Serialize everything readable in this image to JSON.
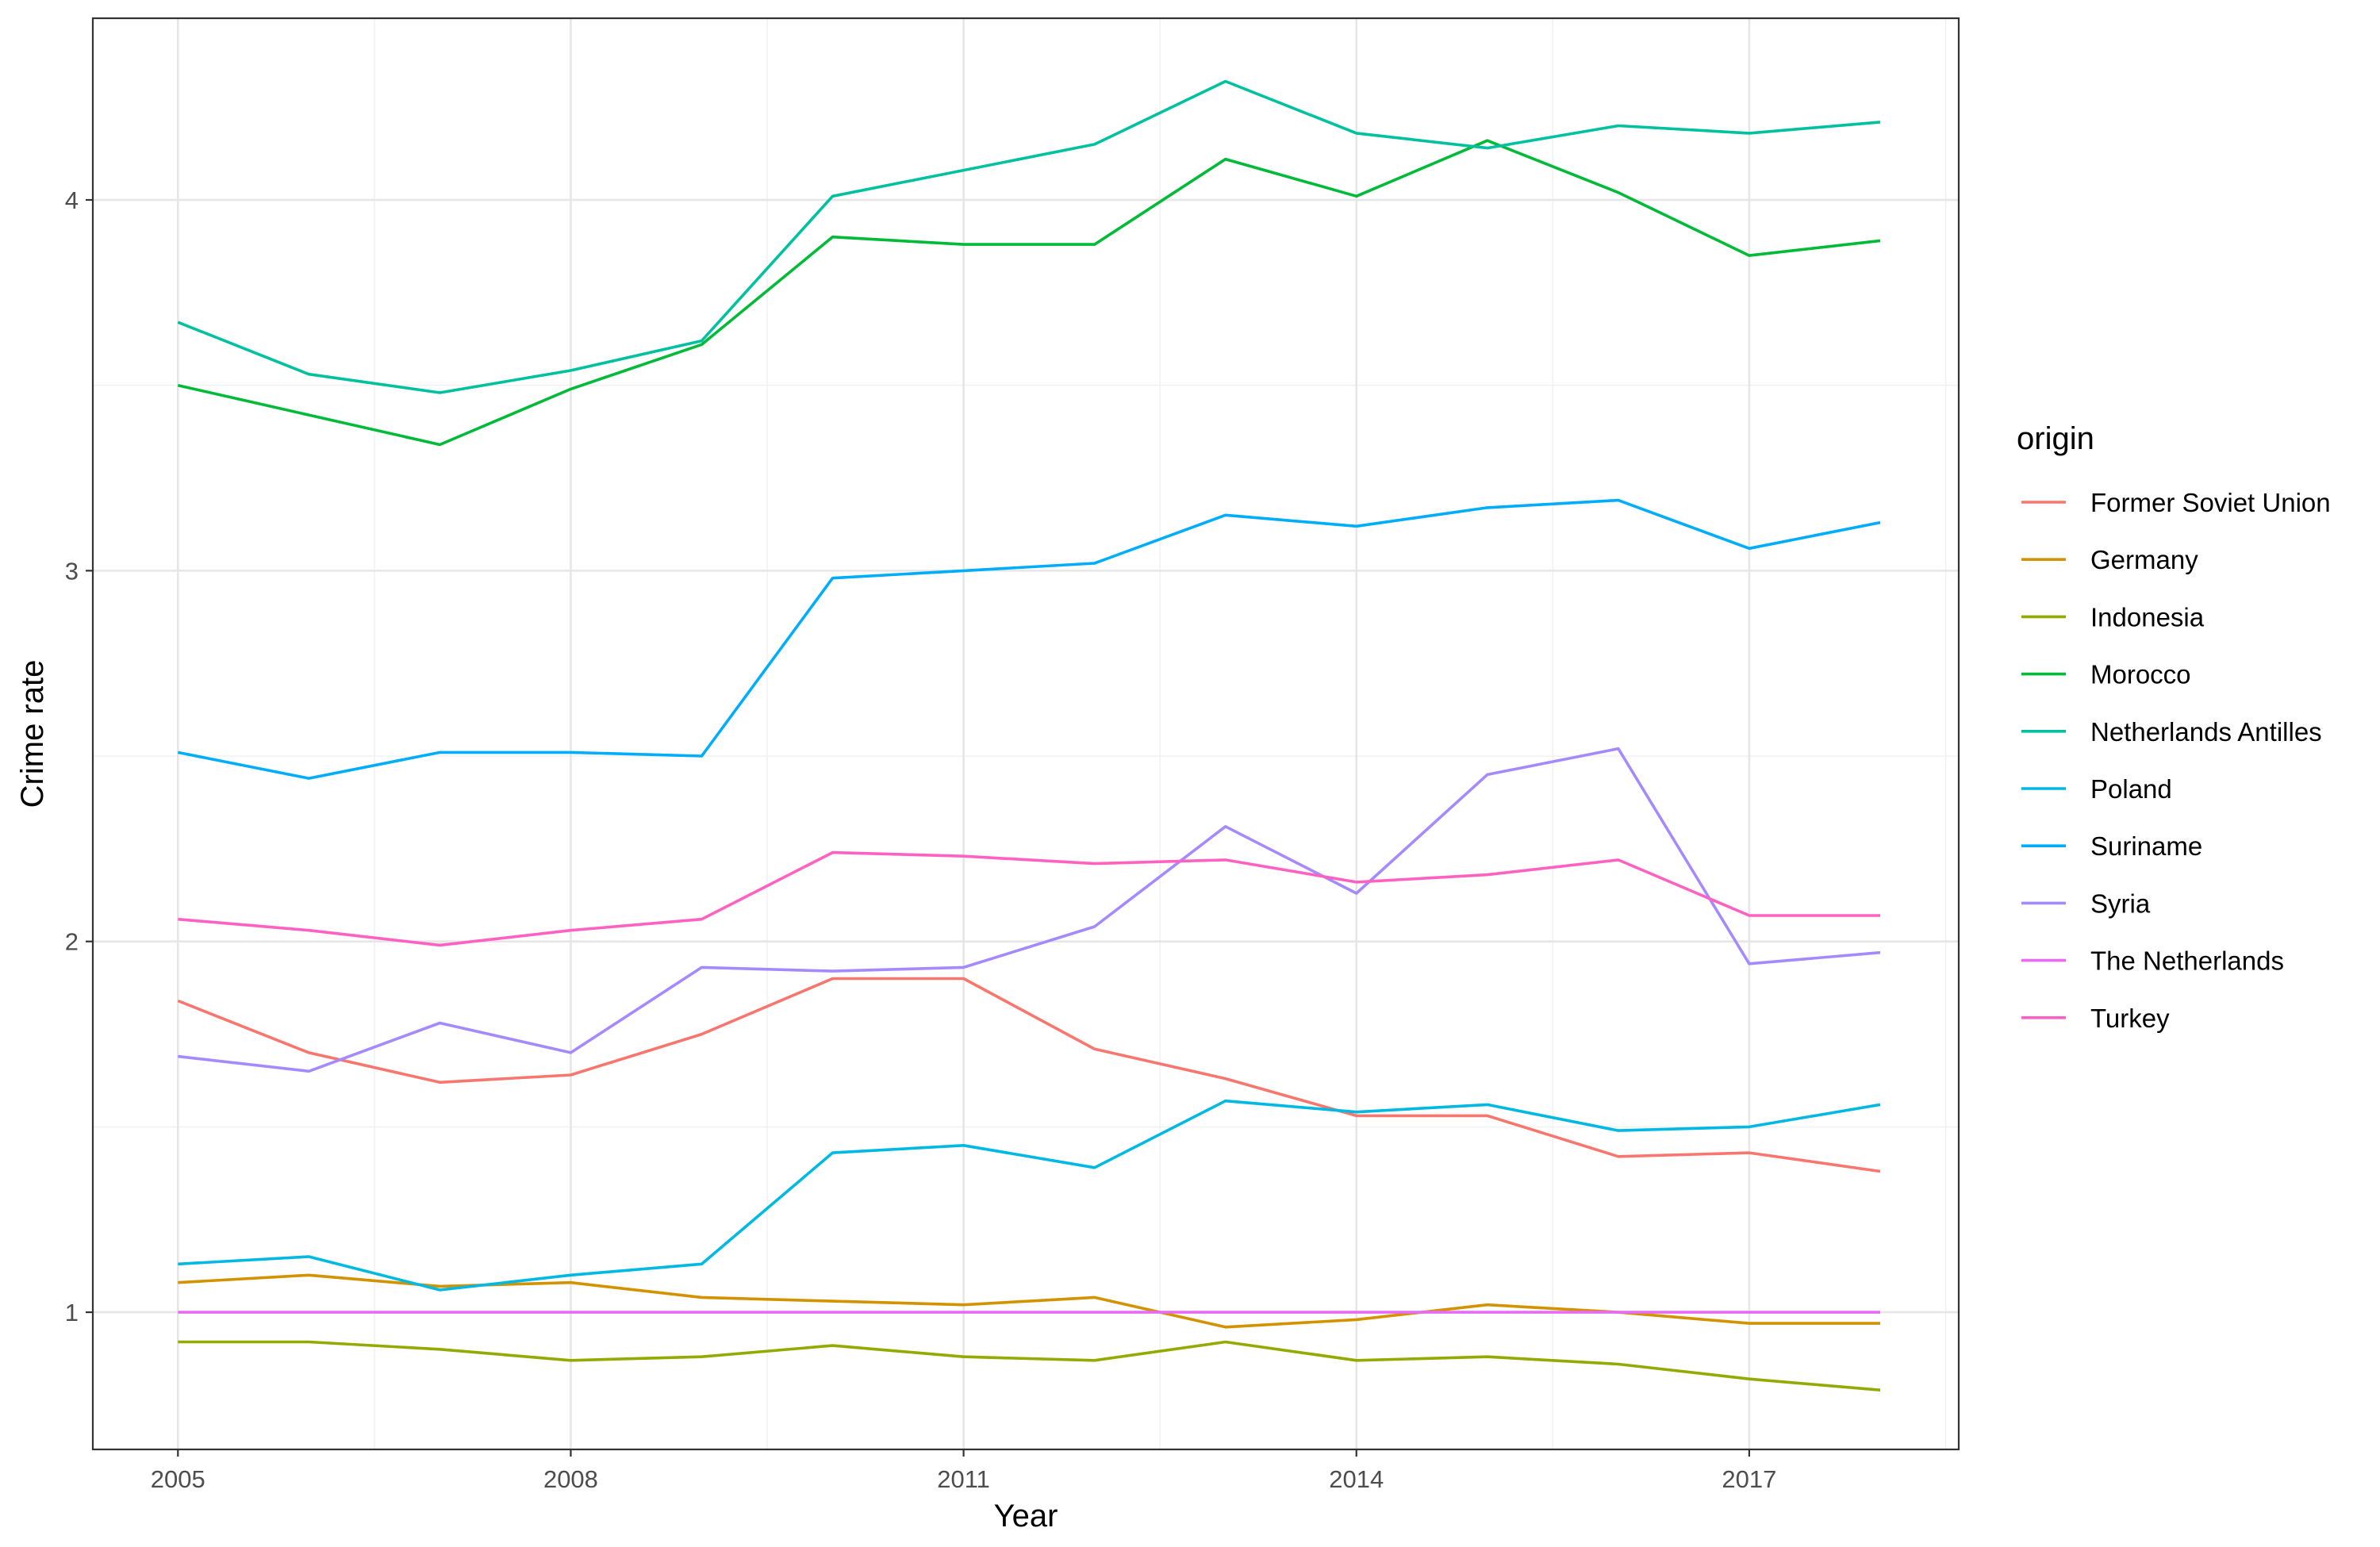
{
  "chart_data": {
    "type": "line",
    "title": "",
    "xlabel": "Year",
    "ylabel": "Crime rate",
    "legend_title": "origin",
    "legend_position": "right",
    "grid": true,
    "xlim": [
      2004.35,
      2018.6
    ],
    "ylim": [
      0.63,
      4.49
    ],
    "x_ticks": [
      2005,
      2008,
      2011,
      2014,
      2017
    ],
    "y_ticks": [
      1,
      2,
      3,
      4
    ],
    "x": [
      2005,
      2006,
      2007,
      2008,
      2009,
      2010,
      2011,
      2012,
      2013,
      2014,
      2015,
      2016,
      2017,
      2018
    ],
    "series": [
      {
        "name": "Former Soviet Union",
        "color": "#F8766D",
        "values": [
          1.84,
          1.7,
          1.62,
          1.64,
          1.75,
          1.9,
          1.9,
          1.71,
          1.63,
          1.53,
          1.53,
          1.42,
          1.43,
          1.38
        ]
      },
      {
        "name": "Germany",
        "color": "#D39200",
        "values": [
          1.08,
          1.1,
          1.07,
          1.08,
          1.04,
          1.03,
          1.02,
          1.04,
          0.96,
          0.98,
          1.02,
          1.0,
          0.97,
          0.97
        ]
      },
      {
        "name": "Indonesia",
        "color": "#93AA00",
        "values": [
          0.92,
          0.92,
          0.9,
          0.87,
          0.88,
          0.91,
          0.88,
          0.87,
          0.92,
          0.87,
          0.88,
          0.86,
          0.82,
          0.79
        ]
      },
      {
        "name": "Morocco",
        "color": "#00BA38",
        "values": [
          3.5,
          3.42,
          3.34,
          3.49,
          3.61,
          3.9,
          3.88,
          3.88,
          4.11,
          4.01,
          4.16,
          4.02,
          3.85,
          3.89
        ]
      },
      {
        "name": "Netherlands Antilles",
        "color": "#00C19F",
        "values": [
          3.67,
          3.53,
          3.48,
          3.54,
          3.62,
          4.01,
          4.08,
          4.15,
          4.32,
          4.18,
          4.14,
          4.2,
          4.18,
          4.21
        ]
      },
      {
        "name": "Poland",
        "color": "#00B9E3",
        "values": [
          1.13,
          1.15,
          1.06,
          1.1,
          1.13,
          1.43,
          1.45,
          1.39,
          1.57,
          1.54,
          1.56,
          1.49,
          1.5,
          1.56
        ]
      },
      {
        "name": "Suriname",
        "color": "#00ADFA",
        "values": [
          2.51,
          2.44,
          2.51,
          2.51,
          2.5,
          2.98,
          3.0,
          3.02,
          3.15,
          3.12,
          3.17,
          3.19,
          3.06,
          3.13
        ]
      },
      {
        "name": "Syria",
        "color": "#A58AFF",
        "values": [
          1.69,
          1.65,
          1.78,
          1.7,
          1.93,
          1.92,
          1.93,
          2.04,
          2.31,
          2.13,
          2.45,
          2.52,
          1.94,
          1.97
        ]
      },
      {
        "name": "The Netherlands",
        "color": "#E76BF3",
        "values": [
          1.0,
          1.0,
          1.0,
          1.0,
          1.0,
          1.0,
          1.0,
          1.0,
          1.0,
          1.0,
          1.0,
          1.0,
          1.0,
          1.0
        ]
      },
      {
        "name": "Turkey",
        "color": "#FF61C3",
        "values": [
          2.06,
          2.03,
          1.99,
          2.03,
          2.06,
          2.24,
          2.23,
          2.21,
          2.22,
          2.16,
          2.18,
          2.22,
          2.07,
          2.07
        ]
      }
    ]
  }
}
